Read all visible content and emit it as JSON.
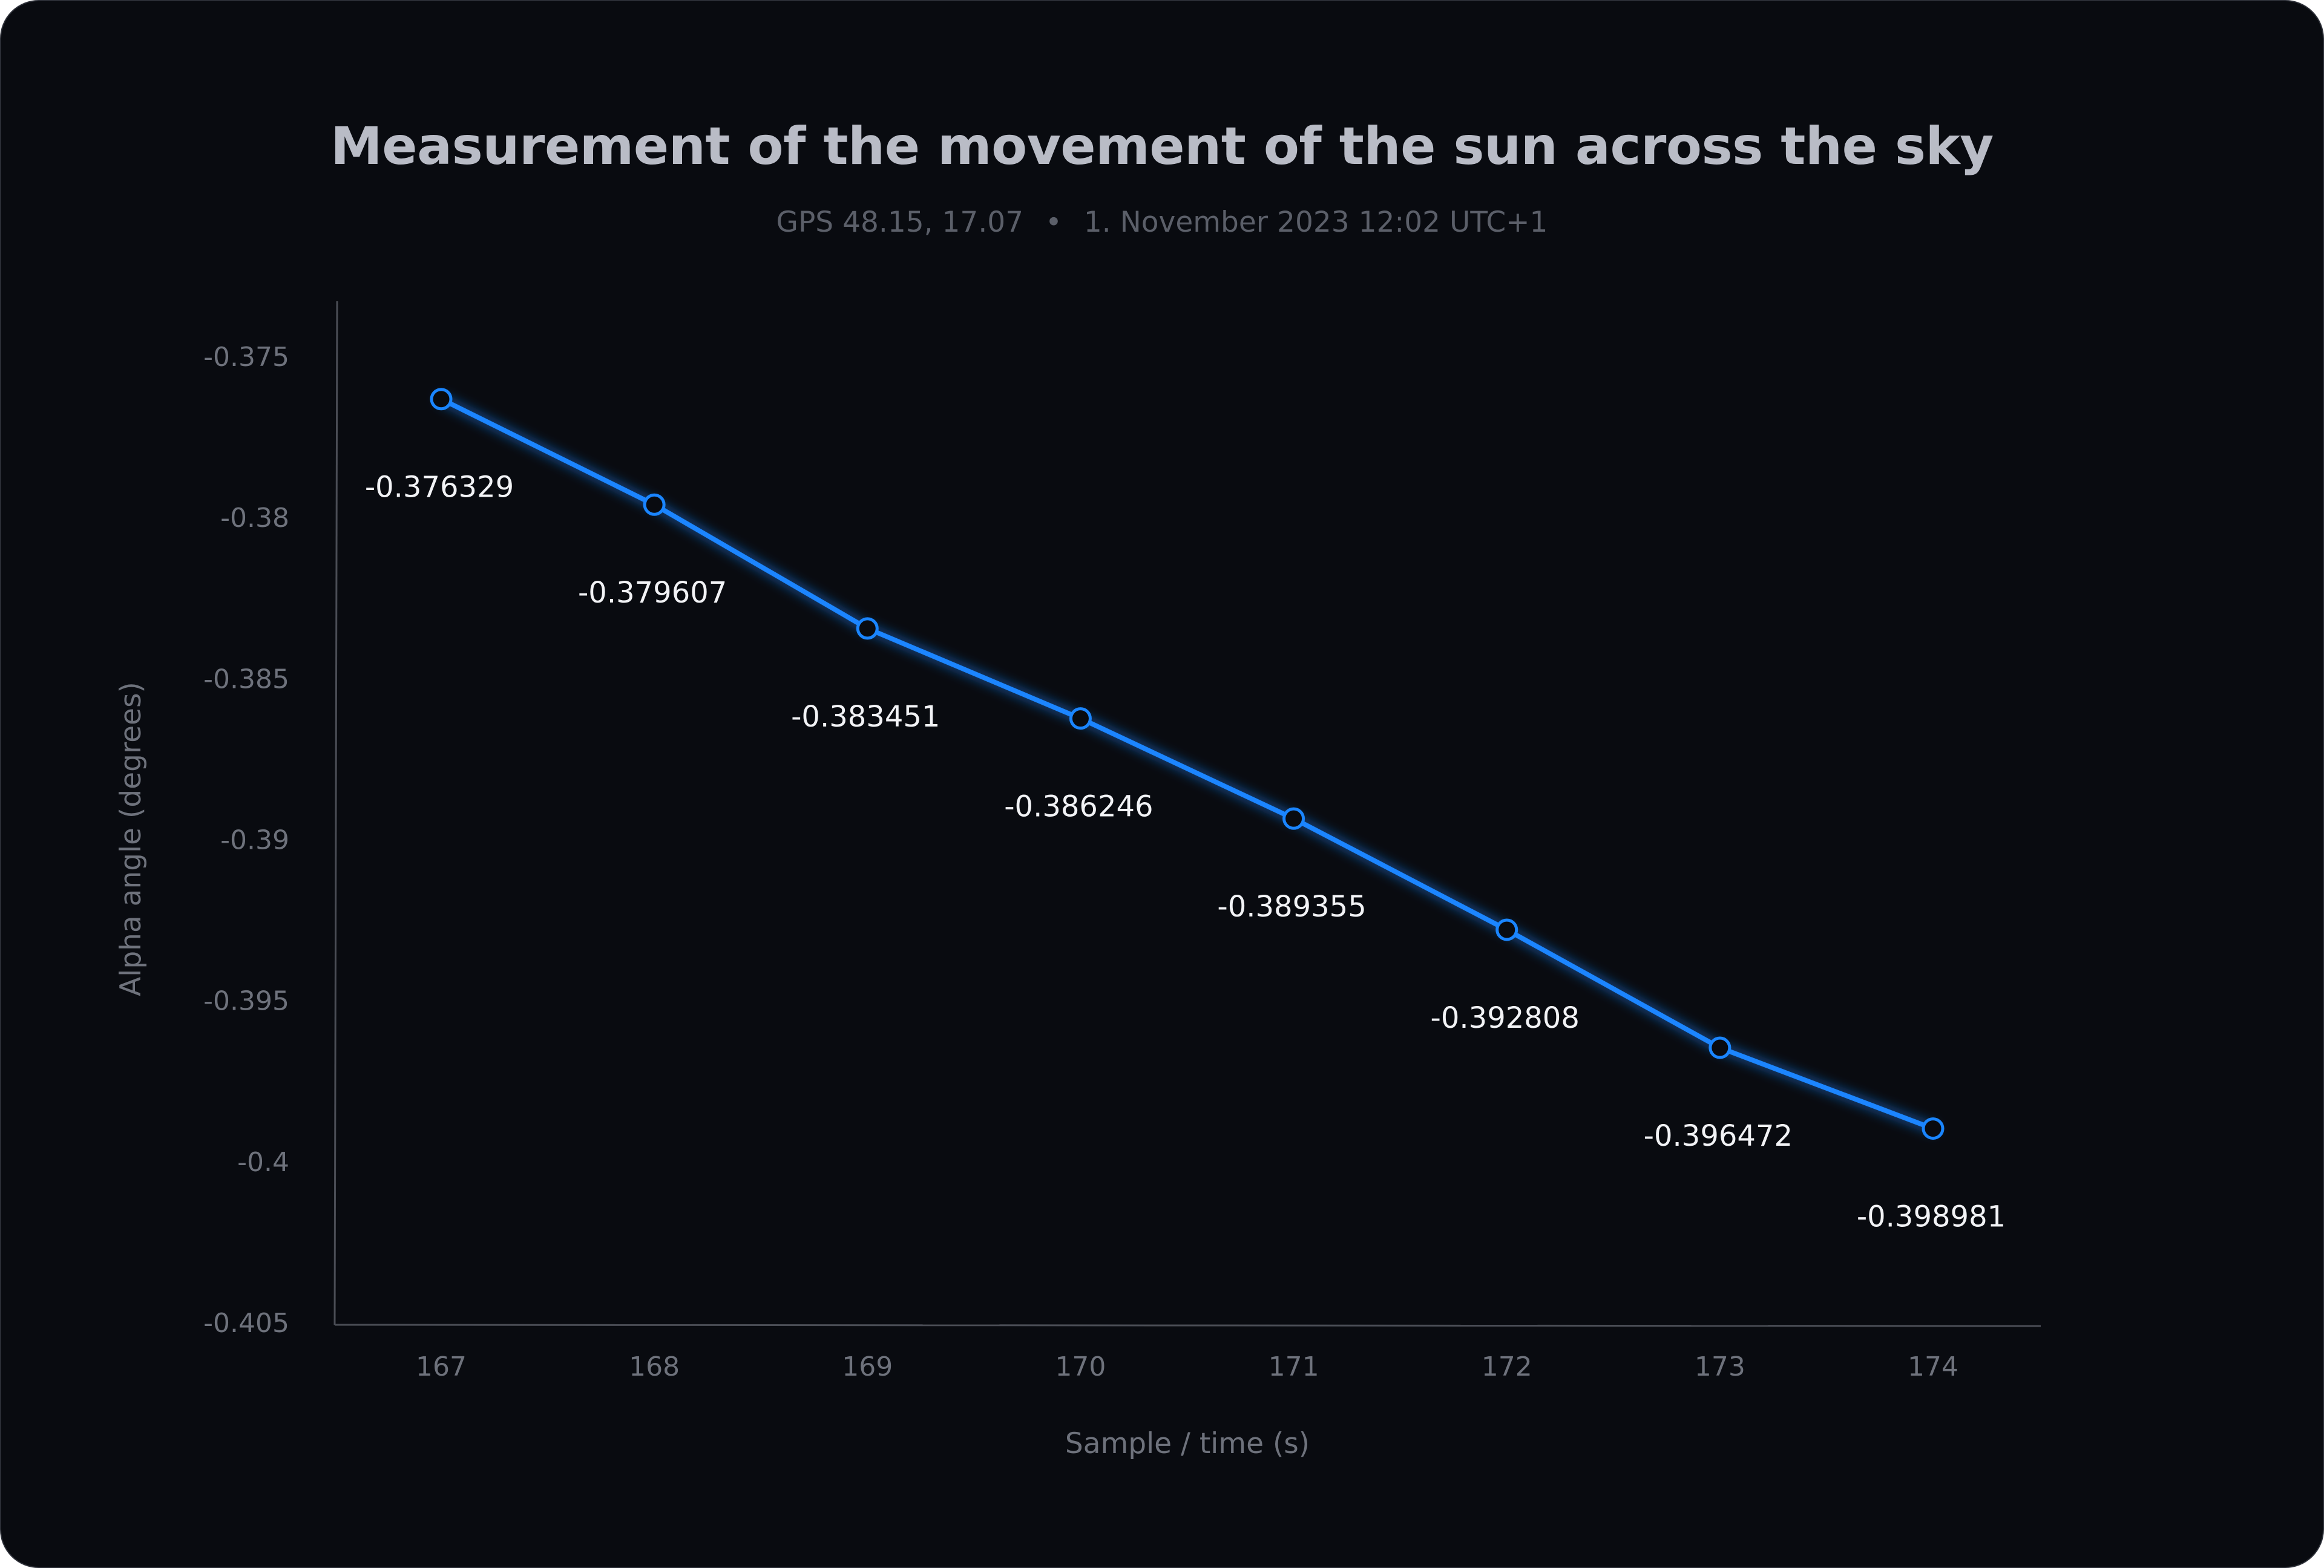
{
  "chart_data": {
    "type": "line",
    "title": "Measurement of the movement of the sun across the sky",
    "subtitle": {
      "location": "GPS 48.15, 17.07",
      "separator": "•",
      "datetime": "1. November 2023 12:02 UTC+1"
    },
    "xlabel": "Sample / time (s)",
    "ylabel": "Alpha angle (degrees)",
    "x": [
      167,
      168,
      169,
      170,
      171,
      172,
      173,
      174
    ],
    "values": [
      -0.376329,
      -0.379607,
      -0.383451,
      -0.386246,
      -0.389355,
      -0.392808,
      -0.396472,
      -0.398981
    ],
    "data_labels": [
      "-0.376329",
      "-0.379607",
      "-0.383451",
      "-0.386246",
      "-0.389355",
      "-0.392808",
      "-0.396472",
      "-0.398981"
    ],
    "xticks": [
      "167",
      "168",
      "169",
      "170",
      "171",
      "172",
      "173",
      "174"
    ],
    "yticks": [
      -0.375,
      -0.38,
      -0.385,
      -0.39,
      -0.395,
      -0.4,
      -0.405
    ],
    "ytick_labels": [
      "-0.375",
      "-0.38",
      "-0.385",
      "-0.39",
      "-0.395",
      "-0.4",
      "-0.405"
    ],
    "ylim": [
      -0.405,
      -0.375
    ],
    "grid": false,
    "line_color": "#1a85ff",
    "background": "#090b10"
  }
}
